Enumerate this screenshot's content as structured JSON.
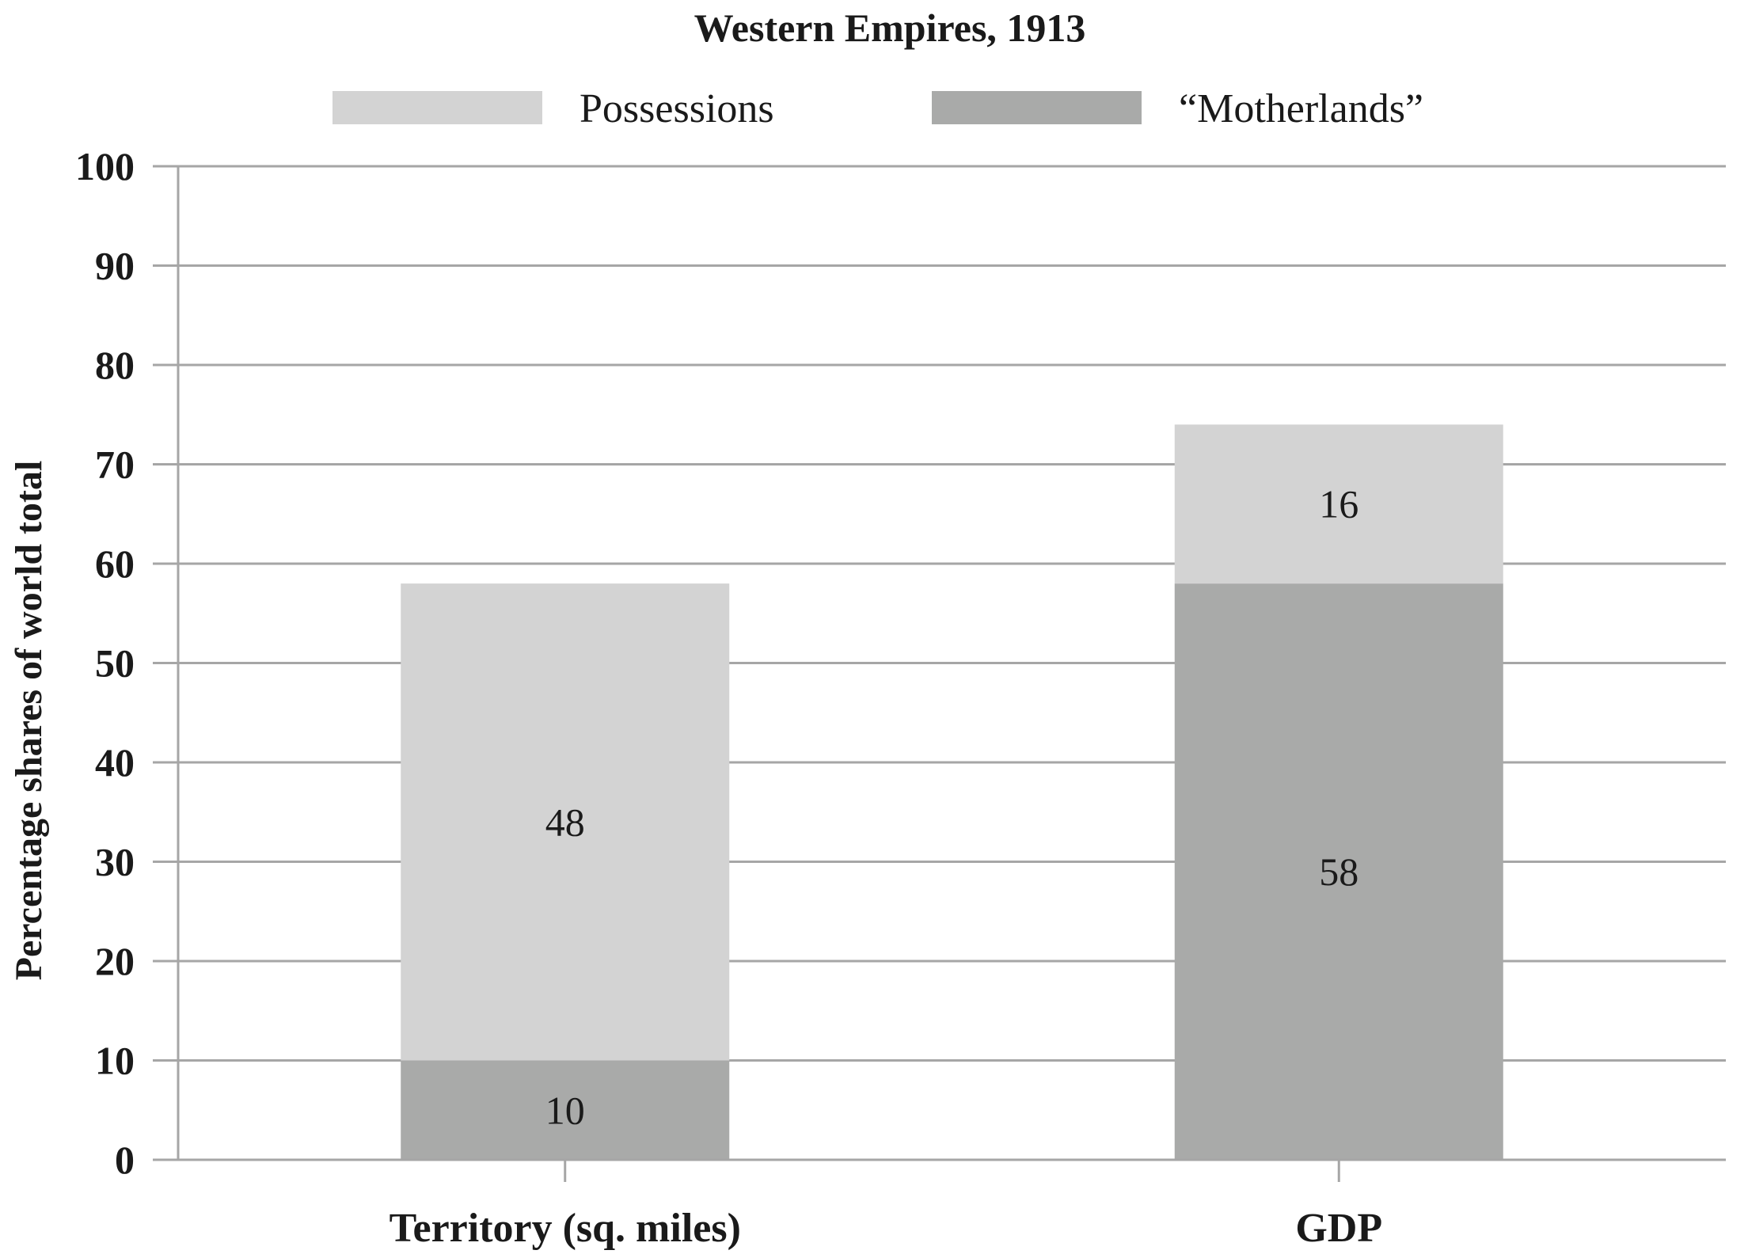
{
  "chart_data": {
    "type": "bar",
    "stacked": true,
    "title": "Western Empires, 1913",
    "xlabel": "",
    "ylabel": "Percentage shares of world total",
    "ylim": [
      0,
      100
    ],
    "yticks": [
      "0",
      "10",
      "20",
      "30",
      "40",
      "50",
      "60",
      "70",
      "80",
      "90",
      "100"
    ],
    "categories": [
      "Territory (sq. miles)",
      "GDP"
    ],
    "series": [
      {
        "name": "“Motherlands”",
        "values": [
          10,
          58
        ],
        "labels": [
          "10",
          "58"
        ],
        "color": "#a9aaa9"
      },
      {
        "name": "Possessions",
        "values": [
          48,
          16
        ],
        "labels": [
          "48",
          "16"
        ],
        "color": "#d3d3d3"
      }
    ],
    "legend": {
      "position": "top",
      "order": [
        "Possessions",
        "“Motherlands”"
      ]
    },
    "grid": true,
    "colors": {
      "grid": "#a6a6a6",
      "axis": "#a6a6a6",
      "text": "#1a1a1a"
    }
  }
}
